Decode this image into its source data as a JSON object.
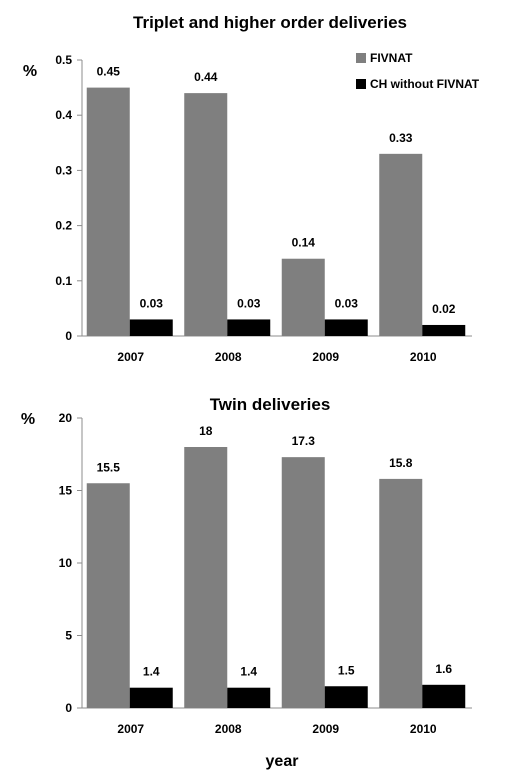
{
  "colors": {
    "FIVNAT": "#7f7f7f",
    "CH without FIVNAT": "#000000"
  },
  "chart_data": [
    {
      "type": "bar",
      "title": "Triplet and higher order deliveries",
      "ylabel": "%",
      "xlabel": "",
      "categories": [
        "2007",
        "2008",
        "2009",
        "2010"
      ],
      "ylim": [
        0,
        0.5
      ],
      "yticks": [
        "0",
        "0.1",
        "0.2",
        "0.3",
        "0.4",
        "0.5"
      ],
      "ytick_values": [
        0,
        0.1,
        0.2,
        0.3,
        0.4,
        0.5
      ],
      "grid": false,
      "legend": "top-right",
      "series": [
        {
          "name": "FIVNAT",
          "values": [
            0.45,
            0.44,
            0.14,
            0.33
          ],
          "labels": [
            "0.45",
            "0.44",
            "0.14",
            "0.33"
          ]
        },
        {
          "name": "CH without FIVNAT",
          "values": [
            0.03,
            0.03,
            0.03,
            0.02
          ],
          "labels": [
            "0.03",
            "0.03",
            "0.03",
            "0.02"
          ]
        }
      ]
    },
    {
      "type": "bar",
      "title": "Twin deliveries",
      "ylabel": "%",
      "xlabel": "year",
      "categories": [
        "2007",
        "2008",
        "2009",
        "2010"
      ],
      "ylim": [
        0,
        20
      ],
      "yticks": [
        "0",
        "5",
        "10",
        "15",
        "20"
      ],
      "ytick_values": [
        0,
        5,
        10,
        15,
        20
      ],
      "grid": false,
      "legend": "none",
      "series": [
        {
          "name": "FIVNAT",
          "values": [
            15.5,
            18,
            17.3,
            15.8
          ],
          "labels": [
            "15.5",
            "18",
            "17.3",
            "15.8"
          ]
        },
        {
          "name": "CH without FIVNAT",
          "values": [
            1.4,
            1.4,
            1.5,
            1.6
          ],
          "labels": [
            "1.4",
            "1.4",
            "1.5",
            "1.6"
          ]
        }
      ]
    }
  ]
}
